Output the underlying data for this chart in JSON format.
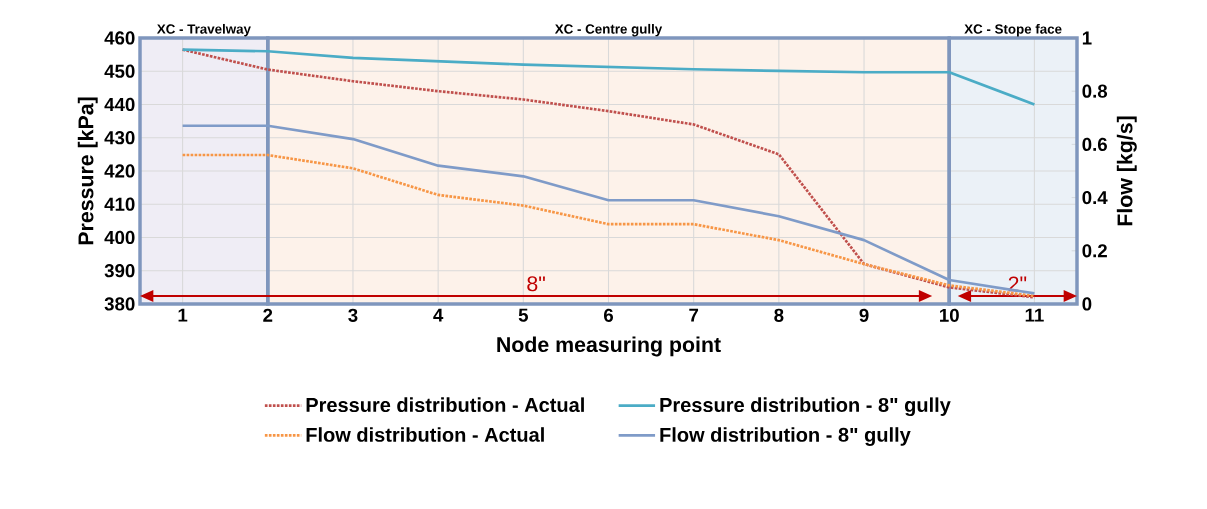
{
  "chart_data": {
    "type": "line",
    "xlabel": "Node measuring point",
    "ylabel": "Pressure [kPa]",
    "y2label": "Flow [kg/s]",
    "x": [
      1,
      2,
      3,
      4,
      5,
      6,
      7,
      8,
      9,
      10,
      11
    ],
    "xlim": [
      0.5,
      11.5
    ],
    "xticks": [
      1,
      2,
      3,
      4,
      5,
      6,
      7,
      8,
      9,
      10,
      11
    ],
    "ylim": [
      380,
      460
    ],
    "yticks": [
      380,
      390,
      400,
      410,
      420,
      430,
      440,
      450,
      460
    ],
    "y2lim": [
      0,
      1
    ],
    "y2ticks": [
      0,
      0.2,
      0.4,
      0.6,
      0.8,
      1
    ],
    "grid": true,
    "legend": "bottom",
    "marker": "none",
    "series": [
      {
        "name": "Pressure distribution - Actual",
        "color": "#c0504d",
        "line_style": "dotted",
        "values": [
          456.5,
          450.5,
          447,
          444,
          441.5,
          438,
          434,
          425,
          392,
          385,
          382
        ]
      },
      {
        "name": "Pressure distribution - 8\" gully",
        "color": "#4bacc6",
        "line_style": "solid",
        "values": [
          456.5,
          456,
          454,
          453,
          452,
          451.3,
          450.6,
          450.1,
          449.7,
          449.7,
          440
        ]
      },
      {
        "name": "Flow distribution - Actual",
        "color": "#f79646",
        "line_style": "dotted",
        "axis": "y2",
        "values": [
          0.56,
          0.56,
          0.51,
          0.41,
          0.37,
          0.3,
          0.3,
          0.24,
          0.15,
          0.07,
          0.03
        ]
      },
      {
        "name": "Flow distribution - 8\" gully",
        "color": "#7f9bc8",
        "line_style": "solid",
        "axis": "y2",
        "values": [
          0.67,
          0.67,
          0.62,
          0.52,
          0.48,
          0.39,
          0.39,
          0.33,
          0.24,
          0.09,
          0.04
        ]
      }
    ],
    "bands": [
      {
        "axis": "x",
        "from": 0.5,
        "to": 2,
        "label": "XC - Travelway",
        "color": "#efedf5"
      },
      {
        "axis": "x",
        "from": 2,
        "to": 10,
        "label": "XC - Centre gully",
        "color": "#fdf2ea"
      },
      {
        "axis": "x",
        "from": 10,
        "to": 11.5,
        "label": "XC - Stope face",
        "color": "#ebf1f7"
      }
    ],
    "annotations": [
      "8\"",
      "2\""
    ]
  }
}
